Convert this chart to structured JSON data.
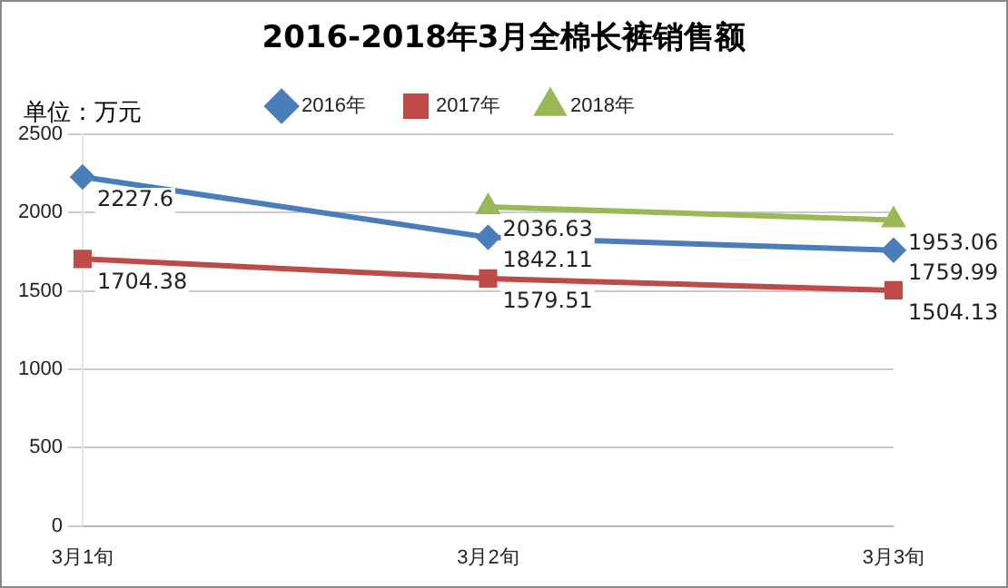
{
  "chart_data": {
    "type": "line",
    "title": "2016-2018年3月全棉长裤销售额",
    "ylabel": "单位：万元",
    "categories": [
      "3月1旬",
      "3月2旬",
      "3月3旬"
    ],
    "series": [
      {
        "name": "2016年",
        "color": "#4a7ebb",
        "marker": "diamond",
        "values": [
          2227.6,
          1842.11,
          1759.99
        ]
      },
      {
        "name": "2017年",
        "color": "#be4b48",
        "marker": "square",
        "values": [
          1704.38,
          1579.51,
          1504.13
        ]
      },
      {
        "name": "2018年",
        "color": "#98b954",
        "marker": "triangle",
        "values": [
          null,
          2036.63,
          1953.06
        ]
      }
    ],
    "ylim": [
      0,
      2500
    ],
    "yticks": [
      0,
      500,
      1000,
      1500,
      2000,
      2500
    ],
    "grid": "y",
    "legend": "top",
    "data_labels": true,
    "line_style": "solid"
  }
}
